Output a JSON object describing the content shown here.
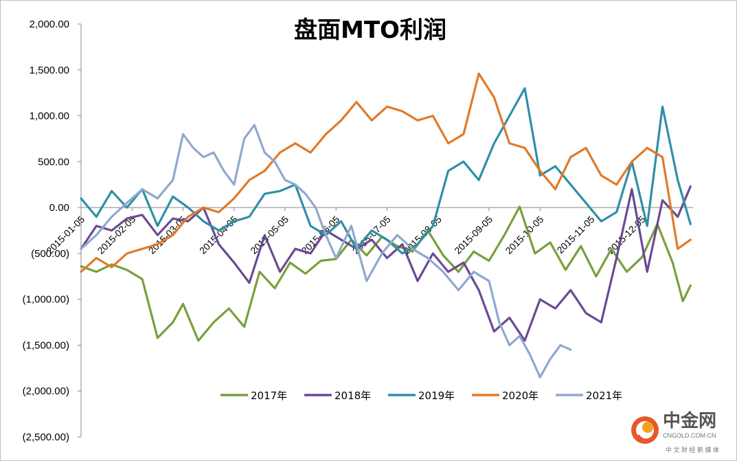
{
  "chart_data": {
    "type": "line",
    "title": "盘面MTO利润",
    "xlabel": "",
    "ylabel": "",
    "x_ticks": [
      "2015-01-05",
      "2015-02-05",
      "2015-03-05",
      "2015-04-05",
      "2015-05-05",
      "2015-06-05",
      "2015-07-05",
      "2015-08-05",
      "2015-09-05",
      "2015-10-05",
      "2015-11-05",
      "2015-12-05"
    ],
    "ylim": [
      -2500,
      2000
    ],
    "y_ticks": [
      2000,
      1500,
      1000,
      500,
      0,
      -500,
      -1000,
      -1500,
      -2000,
      -2500
    ],
    "y_tick_labels": [
      "2,000.00",
      "1,500.00",
      "1,000.00",
      "500.00",
      "0.00",
      "(500.00)",
      "(1,000.00)",
      "(1,500.00)",
      "(2,000.00)",
      "(2,500.00)"
    ],
    "grid": false,
    "legend_position": "bottom",
    "series": [
      {
        "name": "2017年",
        "color": "#77a03c",
        "x": [
          0,
          0.3,
          0.6,
          0.9,
          1.2,
          1.5,
          1.8,
          2.0,
          2.3,
          2.6,
          2.9,
          3.2,
          3.5,
          3.8,
          4.1,
          4.4,
          4.7,
          5.0,
          5.3,
          5.6,
          5.9,
          6.2,
          6.5,
          6.8,
          7.1,
          7.4,
          7.7,
          8.0,
          8.3,
          8.6,
          8.9,
          9.2,
          9.5,
          9.8,
          10.1,
          10.4,
          10.7,
          11.0,
          11.3,
          11.6,
          11.8,
          11.95
        ],
        "y": [
          -640,
          -700,
          -620,
          -680,
          -780,
          -1420,
          -1250,
          -1050,
          -1450,
          -1250,
          -1100,
          -1300,
          -700,
          -880,
          -600,
          -720,
          -580,
          -560,
          -350,
          -520,
          -320,
          -420,
          -480,
          -250,
          -520,
          -700,
          -480,
          -580,
          -300,
          10,
          -500,
          -380,
          -680,
          -420,
          -750,
          -450,
          -700,
          -540,
          -180,
          -600,
          -1020,
          -850
        ],
        "y_extra_note": ""
      },
      {
        "name": "2018年",
        "color": "#6a4a92",
        "x": [
          0,
          0.3,
          0.6,
          0.9,
          1.2,
          1.5,
          1.8,
          2.1,
          2.4,
          2.7,
          3.0,
          3.3,
          3.6,
          3.9,
          4.2,
          4.5,
          4.8,
          5.1,
          5.4,
          5.7,
          6.0,
          6.3,
          6.6,
          6.9,
          7.2,
          7.5,
          7.8,
          8.1,
          8.4,
          8.7,
          9.0,
          9.3,
          9.6,
          9.9,
          10.2,
          10.5,
          10.8,
          11.1,
          11.4,
          11.7,
          11.95
        ],
        "y": [
          -450,
          -200,
          -250,
          -120,
          -80,
          -300,
          -120,
          -150,
          0,
          -400,
          -600,
          -820,
          -300,
          -700,
          -450,
          -500,
          -250,
          -350,
          -450,
          -350,
          -550,
          -400,
          -800,
          -500,
          -700,
          -600,
          -900,
          -1350,
          -1200,
          -1450,
          -1000,
          -1100,
          -900,
          -1150,
          -1250,
          -550,
          200,
          -700,
          80,
          -100,
          230
        ]
      },
      {
        "name": "2019年",
        "color": "#2e8fa8",
        "x": [
          0,
          0.3,
          0.6,
          0.9,
          1.2,
          1.5,
          1.8,
          2.1,
          2.4,
          2.7,
          3.0,
          3.3,
          3.6,
          3.9,
          4.2,
          4.5,
          4.8,
          5.1,
          5.4,
          5.7,
          6.0,
          6.3,
          6.6,
          6.9,
          7.2,
          7.5,
          7.8,
          8.1,
          8.4,
          8.7,
          9.0,
          9.3,
          9.6,
          9.9,
          10.2,
          10.5,
          10.8,
          11.1,
          11.4,
          11.7,
          11.95
        ],
        "y": [
          100,
          -100,
          180,
          0,
          200,
          -200,
          120,
          0,
          -150,
          -250,
          -150,
          -100,
          150,
          180,
          250,
          -200,
          -300,
          -150,
          -450,
          -250,
          -350,
          -500,
          -400,
          -200,
          400,
          500,
          300,
          700,
          1000,
          1300,
          350,
          450,
          250,
          50,
          -150,
          -50,
          500,
          -200,
          1100,
          300,
          -180
        ]
      },
      {
        "name": "2020年",
        "color": "#e07a2a",
        "x": [
          0,
          0.3,
          0.6,
          0.9,
          1.2,
          1.5,
          1.8,
          2.1,
          2.4,
          2.7,
          3.0,
          3.3,
          3.6,
          3.9,
          4.2,
          4.5,
          4.8,
          5.1,
          5.4,
          5.7,
          6.0,
          6.3,
          6.6,
          6.9,
          7.2,
          7.5,
          7.8,
          8.1,
          8.4,
          8.7,
          9.0,
          9.3,
          9.6,
          9.9,
          10.2,
          10.5,
          10.8,
          11.1,
          11.4,
          11.7,
          11.95
        ],
        "y": [
          -700,
          -550,
          -650,
          -500,
          -450,
          -400,
          -300,
          -100,
          0,
          -50,
          100,
          300,
          400,
          600,
          700,
          600,
          800,
          950,
          1150,
          950,
          1100,
          1050,
          950,
          1000,
          700,
          800,
          1460,
          1200,
          700,
          650,
          400,
          200,
          550,
          650,
          350,
          250,
          500,
          650,
          550,
          -450,
          -350
        ]
      },
      {
        "name": "2021年",
        "color": "#8ea8cf",
        "x": [
          0,
          0.3,
          0.6,
          0.9,
          1.2,
          1.5,
          1.8,
          2.0,
          2.2,
          2.4,
          2.6,
          2.8,
          3.0,
          3.2,
          3.4,
          3.6,
          3.8,
          4.0,
          4.2,
          4.4,
          4.6,
          4.8,
          5.0,
          5.3,
          5.6,
          5.9,
          6.2,
          6.5,
          6.8,
          7.1,
          7.4,
          7.7,
          8.0,
          8.2,
          8.4,
          8.6,
          8.8,
          9.0,
          9.2,
          9.4,
          9.6
        ],
        "y": [
          -450,
          -300,
          -100,
          50,
          200,
          100,
          300,
          800,
          650,
          550,
          600,
          400,
          250,
          750,
          900,
          600,
          500,
          300,
          250,
          150,
          0,
          -300,
          -550,
          -200,
          -800,
          -500,
          -300,
          -450,
          -550,
          -700,
          -900,
          -700,
          -800,
          -1250,
          -1500,
          -1400,
          -1600,
          -1850,
          -1650,
          -1500,
          -1550
        ]
      }
    ]
  },
  "watermark": {
    "brand": "中金网",
    "domain": "CNGOLD.COM.CN",
    "tagline": "中 文 财 经 新 媒 体"
  }
}
